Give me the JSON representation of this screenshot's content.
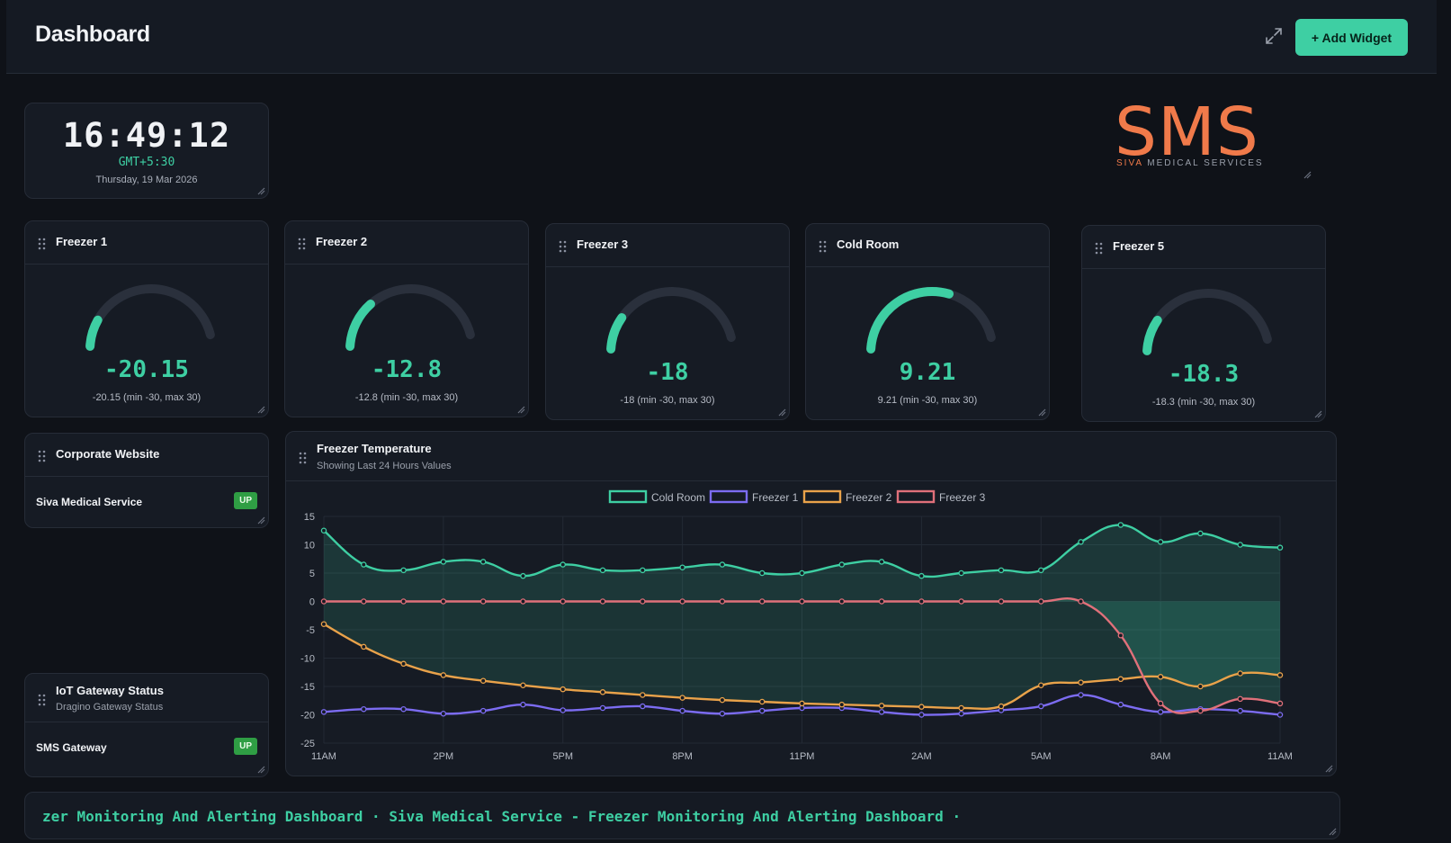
{
  "header": {
    "title": "Dashboard",
    "add_widget_label": "+ Add Widget",
    "expand_icon": "expand-icon"
  },
  "clock": {
    "time": "16:49:12",
    "timezone": "GMT+5:30",
    "date": "Thursday, 19 Mar 2026"
  },
  "logo": {
    "main": "SMS",
    "sub_accent": "SIVA",
    "sub_rest": " MEDICAL SERVICES"
  },
  "gauges": [
    {
      "title": "Freezer 1",
      "value": -20.15,
      "value_text": "-20.15",
      "range_text": "-20.15 (min -30, max 30)",
      "min": -30,
      "max": 30
    },
    {
      "title": "Freezer 2",
      "value": -12.8,
      "value_text": "-12.8",
      "range_text": "-12.8 (min -30, max 30)",
      "min": -30,
      "max": 30
    },
    {
      "title": "Freezer 3",
      "value": -18,
      "value_text": "-18",
      "range_text": "-18 (min -30, max 30)",
      "min": -30,
      "max": 30
    },
    {
      "title": "Cold Room",
      "value": 9.21,
      "value_text": "9.21",
      "range_text": "9.21 (min -30, max 30)",
      "min": -30,
      "max": 30
    },
    {
      "title": "Freezer 5",
      "value": -18.3,
      "value_text": "-18.3",
      "range_text": "-18.3 (min -30, max 30)",
      "min": -30,
      "max": 30
    }
  ],
  "website": {
    "title": "Corporate Website",
    "name": "Siva Medical Service",
    "status": "UP"
  },
  "gateway": {
    "title": "IoT Gateway Status",
    "subtitle": "Dragino Gateway Status",
    "name": "SMS Gateway",
    "status": "UP"
  },
  "chart_panel": {
    "title": "Freezer Temperature",
    "subtitle": "Showing Last 24 Hours Values"
  },
  "chart_data": {
    "type": "line",
    "x": [
      "11AM",
      "",
      "",
      "2PM",
      "",
      "",
      "5PM",
      "",
      "",
      "8PM",
      "",
      "",
      "11PM",
      "",
      "",
      "2AM",
      "",
      "",
      "5AM",
      "",
      "",
      "8AM",
      "",
      "",
      "11AM"
    ],
    "xtick_labels": [
      "11AM",
      "2PM",
      "5PM",
      "8PM",
      "11PM",
      "2AM",
      "5AM",
      "8AM",
      "11AM"
    ],
    "ylim": [
      -25,
      15
    ],
    "yticks": [
      "15",
      "10",
      "5",
      "0",
      "-5",
      "-10",
      "-15",
      "-20",
      "-25"
    ],
    "legend_position": "top",
    "grid": true,
    "series": [
      {
        "name": "Cold Room",
        "color": "#3ecfa3",
        "values": [
          12.5,
          6.5,
          5.5,
          7,
          7,
          4.5,
          6.5,
          5.5,
          5.5,
          6,
          6.5,
          5,
          5,
          6.5,
          7,
          4.5,
          5,
          5.5,
          5.5,
          10.5,
          13.5,
          10.5,
          12,
          10,
          9.5
        ]
      },
      {
        "name": "Freezer 1",
        "color": "#7c6cf2",
        "values": [
          -19.5,
          -19,
          -19,
          -19.8,
          -19.3,
          -18.2,
          -19.2,
          -18.8,
          -18.5,
          -19.3,
          -19.8,
          -19.3,
          -18.8,
          -18.8,
          -19.5,
          -20,
          -19.8,
          -19.2,
          -18.5,
          -16.5,
          -18.2,
          -19.5,
          -19,
          -19.3,
          -20
        ]
      },
      {
        "name": "Freezer 2",
        "color": "#e9a24a",
        "values": [
          -4,
          -8,
          -11,
          -13,
          -14,
          -14.8,
          -15.5,
          -16,
          -16.5,
          -17,
          -17.4,
          -17.7,
          -18,
          -18.2,
          -18.4,
          -18.6,
          -18.8,
          -18.5,
          -14.8,
          -14.3,
          -13.7,
          -13.3,
          -15,
          -12.7,
          -13
        ]
      },
      {
        "name": "Freezer 3",
        "color": "#e0707a",
        "values": [
          0,
          0,
          0,
          0,
          0,
          0,
          0,
          0,
          0,
          0,
          0,
          0,
          0,
          0,
          0,
          0,
          0,
          0,
          0,
          0,
          -6,
          -18,
          -19.3,
          -17.2,
          -18
        ]
      }
    ]
  },
  "ticker": {
    "text": "zer Monitoring And Alerting Dashboard · Siva Medical Service - Freezer Monitoring And Alerting Dashboard ·"
  }
}
